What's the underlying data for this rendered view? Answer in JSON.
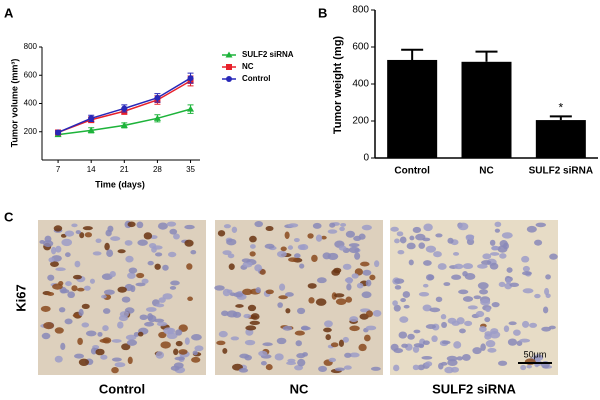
{
  "chart_data": [
    {
      "type": "line",
      "panel_label": "A",
      "xlabel": "Time (days)",
      "ylabel": "Tumor volume (mm³)",
      "x": [
        7,
        14,
        21,
        28,
        35
      ],
      "xlim": [
        3.6,
        37
      ],
      "xticks": [
        7,
        14,
        21,
        28,
        35
      ],
      "ylim": [
        0,
        800
      ],
      "yticks": [
        200,
        400,
        600,
        800
      ],
      "series": [
        {
          "name": "SULF2 siRNA",
          "color": "#1db33a",
          "marker": "triangle",
          "values": [
            180,
            210,
            245,
            295,
            360
          ],
          "errors": [
            10,
            18,
            18,
            25,
            30
          ]
        },
        {
          "name": "NC",
          "color": "#e8202a",
          "marker": "square",
          "values": [
            195,
            285,
            345,
            425,
            560
          ],
          "errors": [
            12,
            20,
            22,
            30,
            35
          ]
        },
        {
          "name": "Control",
          "color": "#2828b8",
          "marker": "circle",
          "values": [
            195,
            295,
            365,
            440,
            580
          ],
          "errors": [
            12,
            22,
            25,
            30,
            35
          ]
        }
      ]
    },
    {
      "type": "bar",
      "panel_label": "B",
      "ylabel": "Tumor weight (mg)",
      "color": "#000000",
      "categories": [
        "Control",
        "NC",
        "SULF2 siRNA"
      ],
      "values": [
        530,
        520,
        205
      ],
      "errors": [
        55,
        55,
        20
      ],
      "annotations": [
        null,
        null,
        "*"
      ],
      "ylim": [
        0,
        800
      ],
      "yticks": [
        0,
        200,
        400,
        600,
        800
      ]
    }
  ],
  "panel_c": {
    "label": "C",
    "row_label": "Ki67",
    "columns": [
      "Control",
      "NC",
      "SULF2 siRNA"
    ],
    "scale_bar": "50μm"
  }
}
